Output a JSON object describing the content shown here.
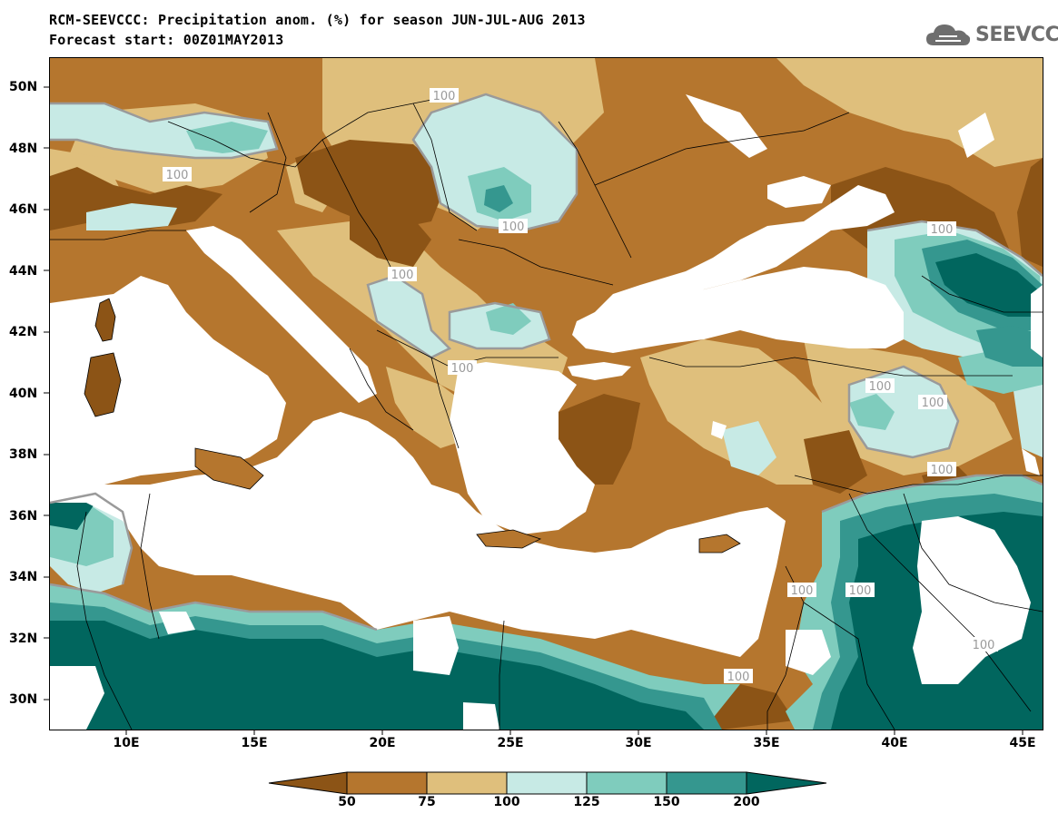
{
  "title_line1": "RCM-SEEVCCC: Precipitation anom. (%) for season JUN-JUL-AUG 2013",
  "title_line2": "Forecast start: 00Z01MAY2013",
  "logo_text": "SEEVCCC",
  "lat_labels": [
    "50N",
    "48N",
    "46N",
    "44N",
    "42N",
    "40N",
    "38N",
    "36N",
    "34N",
    "32N",
    "30N"
  ],
  "lon_labels": [
    "10E",
    "15E",
    "20E",
    "25E",
    "30E",
    "35E",
    "40E",
    "45E"
  ],
  "contour_label": "100",
  "legend": {
    "bins": [
      {
        "range": "<50",
        "color": "#8c5416"
      },
      {
        "range": "50-75",
        "color": "#b5762e"
      },
      {
        "range": "75-100",
        "color": "#dfbf7c"
      },
      {
        "range": "100-125",
        "color": "#c7eae5"
      },
      {
        "range": "125-150",
        "color": "#7fccbd"
      },
      {
        "range": "150-200",
        "color": "#35978f"
      },
      {
        "range": ">200",
        "color": "#01665e"
      }
    ],
    "labels": [
      "50",
      "75",
      "100",
      "125",
      "150",
      "200"
    ]
  },
  "map_colors": {
    "sea": "#ffffff",
    "contour": "#9a9a9a",
    "border": "#000000"
  }
}
